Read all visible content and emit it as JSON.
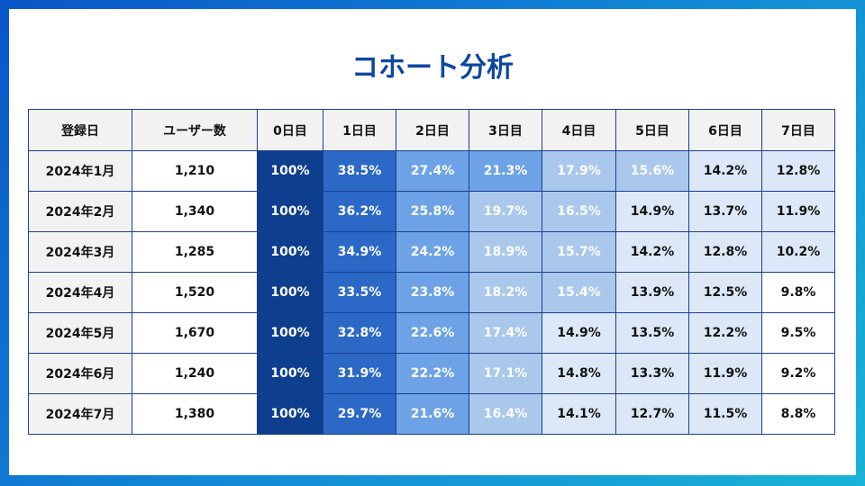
{
  "title": "コホート分析",
  "colors": {
    "title": "#0d47a1",
    "scale": [
      "#ffffff",
      "#dce8f7",
      "#a9c8ec",
      "#6da3e6",
      "#2c68c6",
      "#0d3f8e"
    ]
  },
  "chart_data": {
    "type": "table",
    "title": "コホート分析",
    "columns": [
      "登録日",
      "ユーザー数",
      "0日目",
      "1日目",
      "2日目",
      "3日目",
      "4日目",
      "5日目",
      "6日目",
      "7日目"
    ],
    "rows": [
      {
        "cohort": "2024年1月",
        "users": "1,210",
        "retention": [
          "100%",
          "38.5%",
          "27.4%",
          "21.3%",
          "17.9%",
          "15.6%",
          "14.2%",
          "12.8%"
        ]
      },
      {
        "cohort": "2024年2月",
        "users": "1,340",
        "retention": [
          "100%",
          "36.2%",
          "25.8%",
          "19.7%",
          "16.5%",
          "14.9%",
          "13.7%",
          "11.9%"
        ]
      },
      {
        "cohort": "2024年3月",
        "users": "1,285",
        "retention": [
          "100%",
          "34.9%",
          "24.2%",
          "18.9%",
          "15.7%",
          "14.2%",
          "12.8%",
          "10.2%"
        ]
      },
      {
        "cohort": "2024年4月",
        "users": "1,520",
        "retention": [
          "100%",
          "33.5%",
          "23.8%",
          "18.2%",
          "15.4%",
          "13.9%",
          "12.5%",
          "9.8%"
        ]
      },
      {
        "cohort": "2024年5月",
        "users": "1,670",
        "retention": [
          "100%",
          "32.8%",
          "22.6%",
          "17.4%",
          "14.9%",
          "13.5%",
          "12.2%",
          "9.5%"
        ]
      },
      {
        "cohort": "2024年6月",
        "users": "1,240",
        "retention": [
          "100%",
          "31.9%",
          "22.2%",
          "17.1%",
          "14.8%",
          "13.3%",
          "11.9%",
          "9.2%"
        ]
      },
      {
        "cohort": "2024年7月",
        "users": "1,380",
        "retention": [
          "100%",
          "29.7%",
          "21.6%",
          "16.4%",
          "14.1%",
          "12.7%",
          "11.5%",
          "8.8%"
        ]
      }
    ]
  }
}
